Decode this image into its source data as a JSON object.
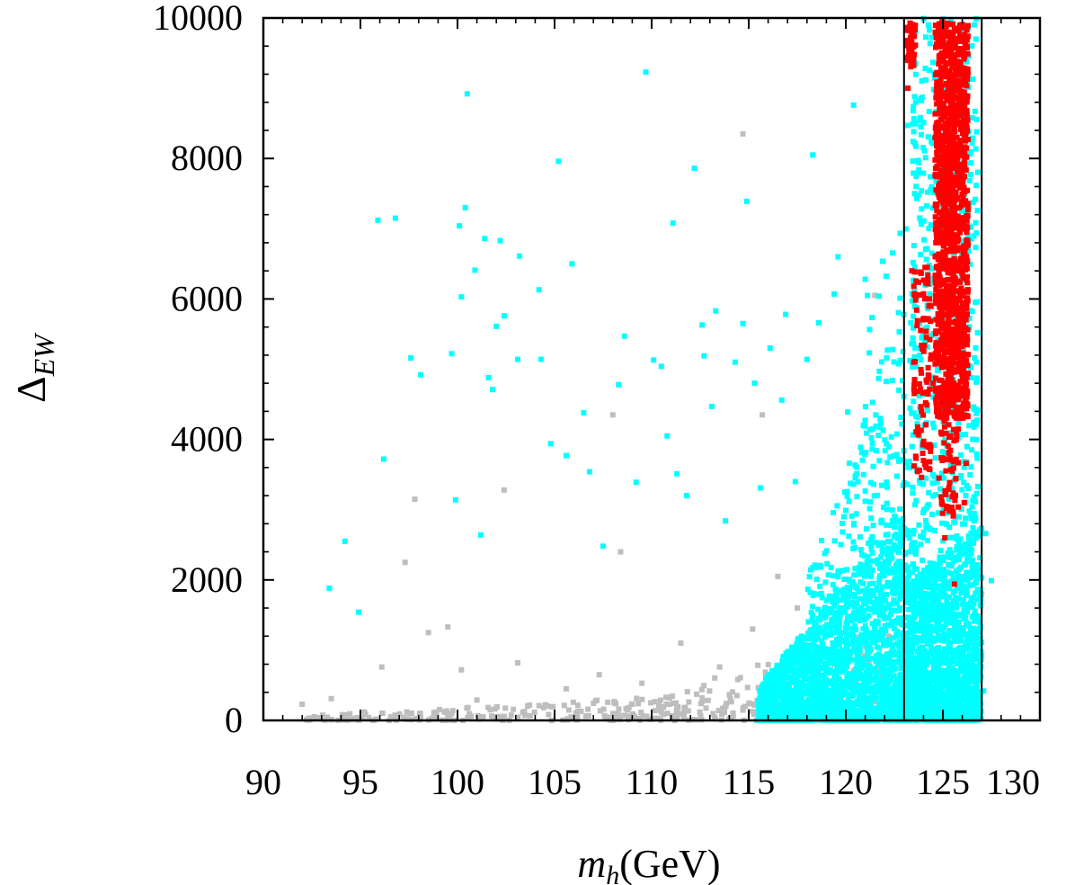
{
  "chart_data": {
    "type": "scatter",
    "title": "",
    "xlabel_var": "m",
    "xlabel_sub": "h",
    "xlabel_unit": "(GeV)",
    "ylabel_sym": "Δ",
    "ylabel_sub": "EW",
    "xlim": [
      90,
      130
    ],
    "ylim": [
      0,
      10000
    ],
    "x_ticks": [
      90,
      95,
      100,
      105,
      110,
      115,
      120,
      125,
      130
    ],
    "y_ticks": [
      0,
      2000,
      4000,
      6000,
      8000,
      10000
    ],
    "x_tick_labels": [
      "90",
      "95",
      "100",
      "105",
      "110",
      "115",
      "120",
      "125",
      "130"
    ],
    "y_tick_labels": [
      "0",
      "2000",
      "4000",
      "6000",
      "8000",
      "10000"
    ],
    "grid": false,
    "vertical_lines": [
      123,
      127
    ],
    "colors": {
      "gray": "#bebebe",
      "cyan": "#00ffff",
      "red": "#ff0000",
      "axis": "#000000"
    },
    "series": [
      {
        "color": "gray",
        "description_points": [
          [
            92,
            230
          ],
          [
            93.5,
            310
          ],
          [
            95.2,
            120
          ],
          [
            96.1,
            760
          ],
          [
            97.3,
            2250
          ],
          [
            97.8,
            3150
          ],
          [
            98.5,
            1250
          ],
          [
            99.5,
            1330
          ],
          [
            100.2,
            720
          ],
          [
            101,
            290
          ],
          [
            102.4,
            3280
          ],
          [
            103.1,
            820
          ],
          [
            104.2,
            210
          ],
          [
            105.6,
            450
          ],
          [
            106.2,
            130
          ],
          [
            107.3,
            650
          ],
          [
            108,
            4350
          ],
          [
            108.4,
            2400
          ],
          [
            109.5,
            530
          ],
          [
            110.5,
            120
          ],
          [
            111.5,
            1100
          ],
          [
            112.6,
            320
          ],
          [
            113.5,
            760
          ],
          [
            114.7,
            8350
          ],
          [
            115.2,
            1300
          ],
          [
            115.7,
            4350
          ],
          [
            116.5,
            2050
          ],
          [
            117.5,
            1600
          ],
          [
            118.5,
            900
          ],
          [
            119.6,
            2100
          ],
          [
            120.3,
            500
          ],
          [
            121.5,
            6050
          ],
          [
            122.2,
            1200
          ],
          [
            124,
            150
          ],
          [
            126.2,
            1350
          ],
          [
            127,
            1800
          ]
        ],
        "bands": [
          {
            "x0": 92,
            "x1": 116,
            "ymax0": 60,
            "ymax1": 420,
            "count": 220
          },
          {
            "x0": 109,
            "x1": 122,
            "ymax0": 300,
            "ymax1": 1300,
            "count": 140
          }
        ]
      },
      {
        "color": "cyan",
        "description_points": [
          [
            93.4,
            1880
          ],
          [
            94.2,
            2550
          ],
          [
            94.9,
            1540
          ],
          [
            96.2,
            3720
          ],
          [
            95.9,
            7120
          ],
          [
            96.8,
            7150
          ],
          [
            97.6,
            5160
          ],
          [
            98.1,
            4920
          ],
          [
            99.7,
            5220
          ],
          [
            99.9,
            3140
          ],
          [
            100.1,
            7040
          ],
          [
            100.2,
            6030
          ],
          [
            100.5,
            8920
          ],
          [
            100.4,
            7300
          ],
          [
            100.9,
            6410
          ],
          [
            101.2,
            2640
          ],
          [
            101.4,
            6860
          ],
          [
            101.6,
            4880
          ],
          [
            101.8,
            4710
          ],
          [
            102,
            5610
          ],
          [
            102.2,
            6830
          ],
          [
            102.4,
            5760
          ],
          [
            103.2,
            6610
          ],
          [
            103.1,
            5140
          ],
          [
            104.2,
            6130
          ],
          [
            104.3,
            5140
          ],
          [
            104.8,
            3940
          ],
          [
            105.2,
            7960
          ],
          [
            105.6,
            3770
          ],
          [
            105.9,
            6500
          ],
          [
            106.5,
            4380
          ],
          [
            106.8,
            3540
          ],
          [
            107.5,
            2480
          ],
          [
            108.3,
            4780
          ],
          [
            108.6,
            5470
          ],
          [
            109.2,
            3390
          ],
          [
            109.7,
            9230
          ],
          [
            110.1,
            5130
          ],
          [
            110.5,
            5040
          ],
          [
            110.8,
            4050
          ],
          [
            111.1,
            7080
          ],
          [
            111.3,
            3510
          ],
          [
            111.8,
            3200
          ],
          [
            112.2,
            7860
          ],
          [
            112.6,
            5630
          ],
          [
            112.7,
            5190
          ],
          [
            113.1,
            4470
          ],
          [
            113.3,
            5830
          ],
          [
            113.8,
            2840
          ],
          [
            114.3,
            5100
          ],
          [
            114.7,
            5650
          ],
          [
            114.9,
            7390
          ],
          [
            115.3,
            4800
          ],
          [
            115.6,
            3310
          ],
          [
            116.1,
            5300
          ],
          [
            116.7,
            4560
          ],
          [
            116.9,
            5780
          ],
          [
            117.4,
            3400
          ],
          [
            118,
            5140
          ],
          [
            118.3,
            8050
          ],
          [
            118.6,
            5660
          ],
          [
            119.4,
            6070
          ],
          [
            119.6,
            6600
          ],
          [
            120.1,
            4390
          ],
          [
            120.4,
            8760
          ],
          [
            121,
            6280
          ],
          [
            122.1,
            5160
          ],
          [
            123.6,
            9350
          ],
          [
            123.2,
            8470
          ],
          [
            126.8,
            3330
          ],
          [
            127.2,
            2660
          ],
          [
            127.5,
            1990
          ],
          [
            127.1,
            420
          ],
          [
            126.6,
            1500
          ]
        ],
        "bands": [
          {
            "x0": 115.5,
            "x1": 123.2,
            "ymax0": 500,
            "ymax1": 3000,
            "count": 1800
          },
          {
            "x0": 118,
            "x1": 123.5,
            "ymax0": 2000,
            "ymax1": 6200,
            "count": 500
          },
          {
            "x0": 121,
            "x1": 123.6,
            "ymax0": 6000,
            "ymax1": 7600,
            "count": 90
          },
          {
            "x0": 123.2,
            "x1": 127,
            "ymax0": 2000,
            "ymax1": 2800,
            "count": 1200
          },
          {
            "x0": 123.4,
            "x1": 126.8,
            "ymax0": 10000,
            "ymax1": 10000,
            "count": 900
          }
        ]
      },
      {
        "color": "red",
        "description_points": [
          [
            123.1,
            9680
          ],
          [
            123.3,
            9540
          ],
          [
            123.2,
            9000
          ],
          [
            123.5,
            5100
          ],
          [
            123.8,
            4790
          ],
          [
            123.6,
            3760
          ],
          [
            123.9,
            3460
          ],
          [
            124,
            3700
          ],
          [
            124.5,
            4800
          ],
          [
            124.7,
            5960
          ],
          [
            124.8,
            3450
          ],
          [
            125.1,
            2600
          ],
          [
            125.6,
            1940
          ],
          [
            126.2,
            3660
          ],
          [
            126.1,
            3100
          ],
          [
            123.4,
            6400
          ],
          [
            123.9,
            5340
          ]
        ],
        "bands": [
          {
            "x0": 124.6,
            "x1": 126.3,
            "y0": 4300,
            "y1": 9950,
            "count": 1400
          },
          {
            "x0": 123.5,
            "x1": 124.4,
            "y0": 3500,
            "y1": 6500,
            "count": 90
          },
          {
            "x0": 123.1,
            "x1": 123.6,
            "y0": 9300,
            "y1": 9950,
            "count": 40
          },
          {
            "x0": 124.9,
            "x1": 125.8,
            "y0": 2900,
            "y1": 4300,
            "count": 60
          }
        ]
      }
    ]
  }
}
